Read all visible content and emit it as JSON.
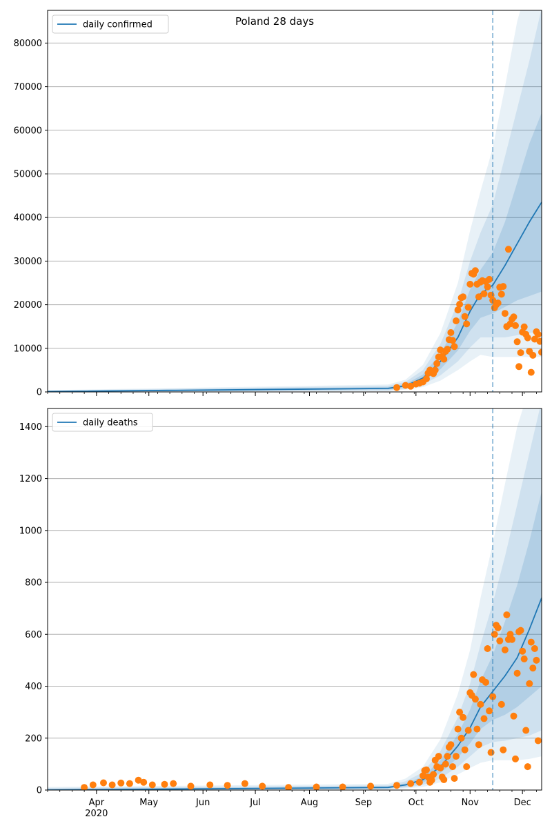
{
  "title": "Poland 28 days",
  "colors": {
    "line": "#1f77b4",
    "points": "#ff7f0e",
    "band": "#1f77b4",
    "grid": "#b0b0b0",
    "vline": "#1f77b4"
  },
  "chart_data": [
    {
      "type": "line",
      "title": "Poland 28 days",
      "legend": "top-left",
      "grid": "horizontal",
      "x_tick_labels": [
        "Apr\n2020",
        "May",
        "Jun",
        "Jul",
        "Aug",
        "Sep",
        "Oct",
        "Nov",
        "Dec"
      ],
      "x_ticks": [
        "2020-04-01",
        "2020-05-01",
        "2020-06-01",
        "2020-07-01",
        "2020-08-01",
        "2020-09-01",
        "2020-10-01",
        "2020-11-01",
        "2020-12-01"
      ],
      "xlim": [
        "2020-03-04",
        "2020-12-12"
      ],
      "ylim": [
        0,
        87500
      ],
      "y_ticks": [
        0,
        10000,
        20000,
        30000,
        40000,
        50000,
        60000,
        70000,
        80000
      ],
      "forecast_start": "2020-11-14",
      "series": [
        {
          "name": "daily confirmed",
          "kind": "model",
          "x": [
            "2020-03-04",
            "2020-09-15",
            "2020-09-25",
            "2020-10-05",
            "2020-10-15",
            "2020-10-25",
            "2020-11-01",
            "2020-11-07",
            "2020-11-14",
            "2020-11-21",
            "2020-11-28",
            "2020-12-05",
            "2020-12-12"
          ],
          "values": [
            100,
            800,
            1400,
            3200,
            7000,
            12500,
            18500,
            22500,
            24500,
            29000,
            34000,
            39000,
            43500
          ],
          "bands": [
            {
              "lower": [
                0,
                500,
                1000,
                2400,
                5200,
                9500,
                14000,
                17000,
                18000,
                19500,
                21000,
                22000,
                23000
              ],
              "upper": [
                200,
                1100,
                1800,
                4000,
                8800,
                16000,
                23500,
                28000,
                32000,
                39000,
                48000,
                57000,
                64000
              ]
            },
            {
              "lower": [
                0,
                300,
                700,
                1700,
                3800,
                7000,
                10200,
                12500,
                12500,
                12500,
                13000,
                13500,
                14000
              ],
              "upper": [
                300,
                1400,
                2300,
                5000,
                11000,
                20500,
                30000,
                36500,
                43000,
                54000,
                65000,
                76000,
                88000
              ]
            },
            {
              "lower": [
                0,
                200,
                500,
                1100,
                2600,
                5000,
                7000,
                8500,
                8000,
                8000,
                8000,
                8000,
                8000
              ],
              "upper": [
                400,
                1700,
                2800,
                6200,
                13500,
                25000,
                37000,
                46000,
                56000,
                70000,
                85000,
                95000,
                100000
              ]
            }
          ]
        },
        {
          "name": "",
          "kind": "observed",
          "points": [
            [
              "2020-09-20",
              1000
            ],
            [
              "2020-09-25",
              1500
            ],
            [
              "2020-09-28",
              1300
            ],
            [
              "2020-10-01",
              1800
            ],
            [
              "2020-10-03",
              2000
            ],
            [
              "2020-10-05",
              2300
            ],
            [
              "2020-10-07",
              3000
            ],
            [
              "2020-10-08",
              4300
            ],
            [
              "2020-10-09",
              5000
            ],
            [
              "2020-10-10",
              4700
            ],
            [
              "2020-10-11",
              4200
            ],
            [
              "2020-10-12",
              5000
            ],
            [
              "2020-10-13",
              6500
            ],
            [
              "2020-10-14",
              8000
            ],
            [
              "2020-10-15",
              9600
            ],
            [
              "2020-10-16",
              8100
            ],
            [
              "2020-10-17",
              7500
            ],
            [
              "2020-10-18",
              9300
            ],
            [
              "2020-10-19",
              9800
            ],
            [
              "2020-10-20",
              12000
            ],
            [
              "2020-10-21",
              13600
            ],
            [
              "2020-10-22",
              11800
            ],
            [
              "2020-10-23",
              10400
            ],
            [
              "2020-10-24",
              16300
            ],
            [
              "2020-10-25",
              18800
            ],
            [
              "2020-10-26",
              20100
            ],
            [
              "2020-10-27",
              21600
            ],
            [
              "2020-10-28",
              21800
            ],
            [
              "2020-10-29",
              17300
            ],
            [
              "2020-10-30",
              15600
            ],
            [
              "2020-10-31",
              19400
            ],
            [
              "2020-11-01",
              24700
            ],
            [
              "2020-11-02",
              27200
            ],
            [
              "2020-11-03",
              27000
            ],
            [
              "2020-11-04",
              27800
            ],
            [
              "2020-11-05",
              24700
            ],
            [
              "2020-11-06",
              21800
            ],
            [
              "2020-11-07",
              25200
            ],
            [
              "2020-11-08",
              25500
            ],
            [
              "2020-11-09",
              22500
            ],
            [
              "2020-11-10",
              25300
            ],
            [
              "2020-11-11",
              24100
            ],
            [
              "2020-11-12",
              25800
            ],
            [
              "2020-11-13",
              22200
            ],
            [
              "2020-11-14",
              21000
            ],
            [
              "2020-11-15",
              19300
            ],
            [
              "2020-11-16",
              20000
            ],
            [
              "2020-11-17",
              20400
            ],
            [
              "2020-11-18",
              24000
            ],
            [
              "2020-11-19",
              22400
            ],
            [
              "2020-11-20",
              24200
            ],
            [
              "2020-11-21",
              18000
            ],
            [
              "2020-11-22",
              15000
            ],
            [
              "2020-11-23",
              32700
            ],
            [
              "2020-11-24",
              15600
            ],
            [
              "2020-11-25",
              16700
            ],
            [
              "2020-11-26",
              17200
            ],
            [
              "2020-11-27",
              15200
            ],
            [
              "2020-11-28",
              11500
            ],
            [
              "2020-11-29",
              5800
            ],
            [
              "2020-11-30",
              9000
            ],
            [
              "2020-12-01",
              13700
            ],
            [
              "2020-12-02",
              14900
            ],
            [
              "2020-12-03",
              13200
            ],
            [
              "2020-12-04",
              12400
            ],
            [
              "2020-12-05",
              9300
            ],
            [
              "2020-12-06",
              4500
            ],
            [
              "2020-12-07",
              8400
            ],
            [
              "2020-12-08",
              12100
            ],
            [
              "2020-12-09",
              13800
            ],
            [
              "2020-12-10",
              13200
            ],
            [
              "2020-12-11",
              11600
            ],
            [
              "2020-12-12",
              9100
            ]
          ]
        }
      ]
    },
    {
      "type": "line",
      "title": "",
      "legend": "top-left",
      "grid": "horizontal",
      "x_tick_labels": [
        "Apr\n2020",
        "May",
        "Jun",
        "Jul",
        "Aug",
        "Sep",
        "Oct",
        "Nov",
        "Dec"
      ],
      "x_ticks": [
        "2020-04-01",
        "2020-05-01",
        "2020-06-01",
        "2020-07-01",
        "2020-08-01",
        "2020-09-01",
        "2020-10-01",
        "2020-11-01",
        "2020-12-01"
      ],
      "xlim": [
        "2020-03-04",
        "2020-12-12"
      ],
      "ylim": [
        0,
        1470
      ],
      "y_ticks": [
        0,
        200,
        400,
        600,
        800,
        1000,
        1200,
        1400
      ],
      "forecast_start": "2020-11-14",
      "series": [
        {
          "name": "daily deaths",
          "kind": "model",
          "x": [
            "2020-03-04",
            "2020-09-15",
            "2020-09-25",
            "2020-10-05",
            "2020-10-15",
            "2020-10-25",
            "2020-11-01",
            "2020-11-07",
            "2020-11-14",
            "2020-11-21",
            "2020-11-28",
            "2020-12-05",
            "2020-12-12"
          ],
          "values": [
            0,
            10,
            20,
            40,
            90,
            170,
            240,
            320,
            380,
            440,
            510,
            620,
            740
          ],
          "bands": [
            {
              "lower": [
                0,
                6,
                14,
                28,
                65,
                125,
                180,
                235,
                270,
                290,
                320,
                360,
                400
              ],
              "upper": [
                5,
                14,
                26,
                52,
                115,
                215,
                310,
                420,
                520,
                650,
                790,
                960,
                1150
              ]
            },
            {
              "lower": [
                0,
                4,
                10,
                20,
                45,
                90,
                130,
                165,
                185,
                190,
                200,
                210,
                230
              ],
              "upper": [
                8,
                18,
                34,
                68,
                150,
                280,
                410,
                560,
                720,
                900,
                1100,
                1300,
                1500
              ]
            },
            {
              "lower": [
                0,
                2,
                6,
                12,
                30,
                60,
                85,
                105,
                115,
                115,
                115,
                120,
                130
              ],
              "upper": [
                12,
                24,
                44,
                90,
                195,
                370,
                540,
                740,
                950,
                1180,
                1400,
                1550,
                1650
              ]
            }
          ]
        },
        {
          "name": "",
          "kind": "observed",
          "points": [
            [
              "2020-03-25",
              10
            ],
            [
              "2020-03-30",
              20
            ],
            [
              "2020-04-05",
              28
            ],
            [
              "2020-04-10",
              20
            ],
            [
              "2020-04-15",
              27
            ],
            [
              "2020-04-20",
              25
            ],
            [
              "2020-04-25",
              38
            ],
            [
              "2020-04-28",
              30
            ],
            [
              "2020-05-03",
              20
            ],
            [
              "2020-05-10",
              22
            ],
            [
              "2020-05-15",
              25
            ],
            [
              "2020-05-25",
              15
            ],
            [
              "2020-06-05",
              20
            ],
            [
              "2020-06-15",
              18
            ],
            [
              "2020-06-25",
              25
            ],
            [
              "2020-07-05",
              15
            ],
            [
              "2020-07-20",
              10
            ],
            [
              "2020-08-05",
              12
            ],
            [
              "2020-08-20",
              12
            ],
            [
              "2020-09-05",
              15
            ],
            [
              "2020-09-20",
              18
            ],
            [
              "2020-09-28",
              25
            ],
            [
              "2020-10-03",
              30
            ],
            [
              "2020-10-05",
              55
            ],
            [
              "2020-10-06",
              75
            ],
            [
              "2020-10-07",
              78
            ],
            [
              "2020-10-08",
              50
            ],
            [
              "2020-10-09",
              30
            ],
            [
              "2020-10-10",
              38
            ],
            [
              "2020-10-11",
              60
            ],
            [
              "2020-10-12",
              115
            ],
            [
              "2020-10-13",
              90
            ],
            [
              "2020-10-14",
              130
            ],
            [
              "2020-10-15",
              85
            ],
            [
              "2020-10-16",
              50
            ],
            [
              "2020-10-17",
              40
            ],
            [
              "2020-10-18",
              100
            ],
            [
              "2020-10-19",
              130
            ],
            [
              "2020-10-20",
              165
            ],
            [
              "2020-10-21",
              175
            ],
            [
              "2020-10-22",
              90
            ],
            [
              "2020-10-23",
              45
            ],
            [
              "2020-10-24",
              130
            ],
            [
              "2020-10-25",
              235
            ],
            [
              "2020-10-26",
              300
            ],
            [
              "2020-10-27",
              200
            ],
            [
              "2020-10-28",
              280
            ],
            [
              "2020-10-29",
              155
            ],
            [
              "2020-10-30",
              90
            ],
            [
              "2020-10-31",
              230
            ],
            [
              "2020-11-01",
              375
            ],
            [
              "2020-11-02",
              365
            ],
            [
              "2020-11-03",
              445
            ],
            [
              "2020-11-04",
              350
            ],
            [
              "2020-11-05",
              235
            ],
            [
              "2020-11-06",
              175
            ],
            [
              "2020-11-07",
              330
            ],
            [
              "2020-11-08",
              425
            ],
            [
              "2020-11-09",
              275
            ],
            [
              "2020-11-10",
              415
            ],
            [
              "2020-11-11",
              545
            ],
            [
              "2020-11-12",
              305
            ],
            [
              "2020-11-13",
              145
            ],
            [
              "2020-11-14",
              360
            ],
            [
              "2020-11-15",
              600
            ],
            [
              "2020-11-16",
              635
            ],
            [
              "2020-11-17",
              625
            ],
            [
              "2020-11-18",
              575
            ],
            [
              "2020-11-19",
              330
            ],
            [
              "2020-11-20",
              155
            ],
            [
              "2020-11-21",
              540
            ],
            [
              "2020-11-22",
              675
            ],
            [
              "2020-11-23",
              580
            ],
            [
              "2020-11-24",
              600
            ],
            [
              "2020-11-25",
              580
            ],
            [
              "2020-11-26",
              285
            ],
            [
              "2020-11-27",
              120
            ],
            [
              "2020-11-28",
              450
            ],
            [
              "2020-11-29",
              610
            ],
            [
              "2020-11-30",
              615
            ],
            [
              "2020-12-01",
              535
            ],
            [
              "2020-12-02",
              505
            ],
            [
              "2020-12-03",
              230
            ],
            [
              "2020-12-04",
              90
            ],
            [
              "2020-12-05",
              410
            ],
            [
              "2020-12-06",
              570
            ],
            [
              "2020-12-07",
              470
            ],
            [
              "2020-12-08",
              545
            ],
            [
              "2020-12-09",
              500
            ],
            [
              "2020-12-10",
              190
            ]
          ]
        }
      ]
    }
  ]
}
